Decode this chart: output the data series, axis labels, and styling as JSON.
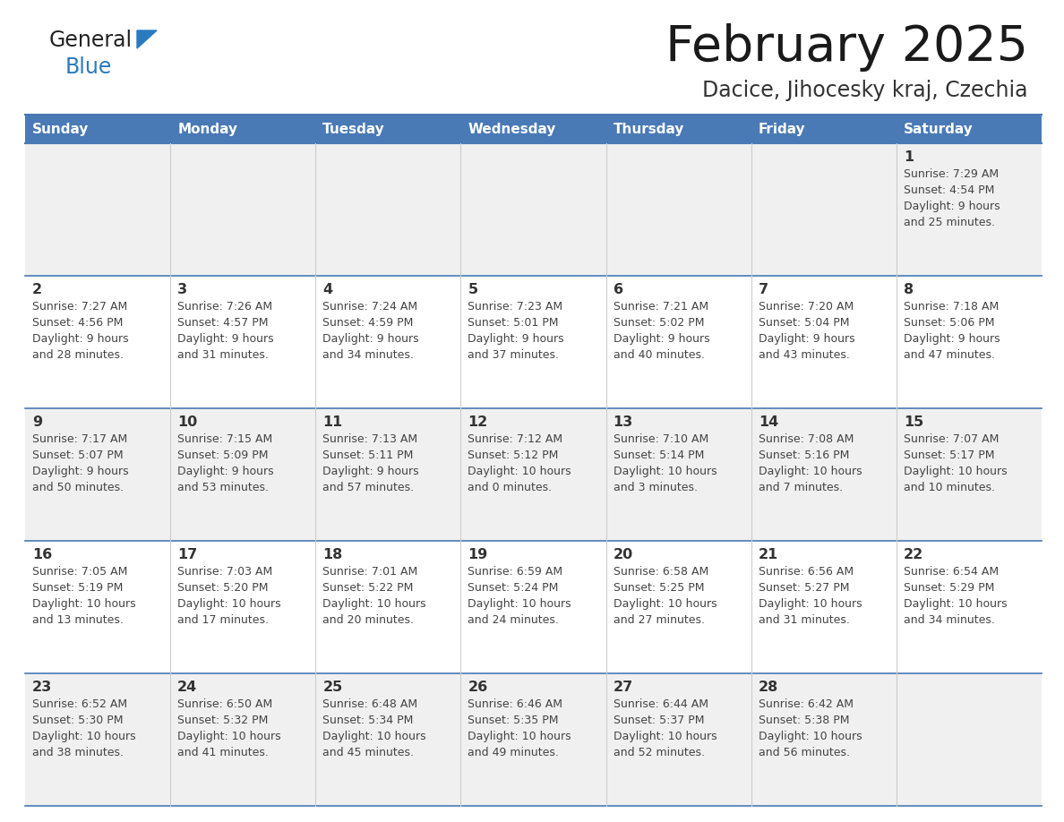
{
  "title": "February 2025",
  "subtitle": "Dacice, Jihocesky kraj, Czechia",
  "days_of_week": [
    "Sunday",
    "Monday",
    "Tuesday",
    "Wednesday",
    "Thursday",
    "Friday",
    "Saturday"
  ],
  "header_bg": "#4a7ab5",
  "header_text": "#ffffff",
  "row_bg_odd": "#f0f0f0",
  "row_bg_even": "#ffffff",
  "border_color": "#4a7ab5",
  "cell_text_color": "#444444",
  "day_num_color": "#333333",
  "title_color": "#1a1a1a",
  "subtitle_color": "#333333",
  "calendar_data": [
    {
      "day": 1,
      "col": 6,
      "row": 0,
      "sunrise": "7:29 AM",
      "sunset": "4:54 PM",
      "daylight": "9 hours and 25 minutes."
    },
    {
      "day": 2,
      "col": 0,
      "row": 1,
      "sunrise": "7:27 AM",
      "sunset": "4:56 PM",
      "daylight": "9 hours and 28 minutes."
    },
    {
      "day": 3,
      "col": 1,
      "row": 1,
      "sunrise": "7:26 AM",
      "sunset": "4:57 PM",
      "daylight": "9 hours and 31 minutes."
    },
    {
      "day": 4,
      "col": 2,
      "row": 1,
      "sunrise": "7:24 AM",
      "sunset": "4:59 PM",
      "daylight": "9 hours and 34 minutes."
    },
    {
      "day": 5,
      "col": 3,
      "row": 1,
      "sunrise": "7:23 AM",
      "sunset": "5:01 PM",
      "daylight": "9 hours and 37 minutes."
    },
    {
      "day": 6,
      "col": 4,
      "row": 1,
      "sunrise": "7:21 AM",
      "sunset": "5:02 PM",
      "daylight": "9 hours and 40 minutes."
    },
    {
      "day": 7,
      "col": 5,
      "row": 1,
      "sunrise": "7:20 AM",
      "sunset": "5:04 PM",
      "daylight": "9 hours and 43 minutes."
    },
    {
      "day": 8,
      "col": 6,
      "row": 1,
      "sunrise": "7:18 AM",
      "sunset": "5:06 PM",
      "daylight": "9 hours and 47 minutes."
    },
    {
      "day": 9,
      "col": 0,
      "row": 2,
      "sunrise": "7:17 AM",
      "sunset": "5:07 PM",
      "daylight": "9 hours and 50 minutes."
    },
    {
      "day": 10,
      "col": 1,
      "row": 2,
      "sunrise": "7:15 AM",
      "sunset": "5:09 PM",
      "daylight": "9 hours and 53 minutes."
    },
    {
      "day": 11,
      "col": 2,
      "row": 2,
      "sunrise": "7:13 AM",
      "sunset": "5:11 PM",
      "daylight": "9 hours and 57 minutes."
    },
    {
      "day": 12,
      "col": 3,
      "row": 2,
      "sunrise": "7:12 AM",
      "sunset": "5:12 PM",
      "daylight": "10 hours and 0 minutes."
    },
    {
      "day": 13,
      "col": 4,
      "row": 2,
      "sunrise": "7:10 AM",
      "sunset": "5:14 PM",
      "daylight": "10 hours and 3 minutes."
    },
    {
      "day": 14,
      "col": 5,
      "row": 2,
      "sunrise": "7:08 AM",
      "sunset": "5:16 PM",
      "daylight": "10 hours and 7 minutes."
    },
    {
      "day": 15,
      "col": 6,
      "row": 2,
      "sunrise": "7:07 AM",
      "sunset": "5:17 PM",
      "daylight": "10 hours and 10 minutes."
    },
    {
      "day": 16,
      "col": 0,
      "row": 3,
      "sunrise": "7:05 AM",
      "sunset": "5:19 PM",
      "daylight": "10 hours and 13 minutes."
    },
    {
      "day": 17,
      "col": 1,
      "row": 3,
      "sunrise": "7:03 AM",
      "sunset": "5:20 PM",
      "daylight": "10 hours and 17 minutes."
    },
    {
      "day": 18,
      "col": 2,
      "row": 3,
      "sunrise": "7:01 AM",
      "sunset": "5:22 PM",
      "daylight": "10 hours and 20 minutes."
    },
    {
      "day": 19,
      "col": 3,
      "row": 3,
      "sunrise": "6:59 AM",
      "sunset": "5:24 PM",
      "daylight": "10 hours and 24 minutes."
    },
    {
      "day": 20,
      "col": 4,
      "row": 3,
      "sunrise": "6:58 AM",
      "sunset": "5:25 PM",
      "daylight": "10 hours and 27 minutes."
    },
    {
      "day": 21,
      "col": 5,
      "row": 3,
      "sunrise": "6:56 AM",
      "sunset": "5:27 PM",
      "daylight": "10 hours and 31 minutes."
    },
    {
      "day": 22,
      "col": 6,
      "row": 3,
      "sunrise": "6:54 AM",
      "sunset": "5:29 PM",
      "daylight": "10 hours and 34 minutes."
    },
    {
      "day": 23,
      "col": 0,
      "row": 4,
      "sunrise": "6:52 AM",
      "sunset": "5:30 PM",
      "daylight": "10 hours and 38 minutes."
    },
    {
      "day": 24,
      "col": 1,
      "row": 4,
      "sunrise": "6:50 AM",
      "sunset": "5:32 PM",
      "daylight": "10 hours and 41 minutes."
    },
    {
      "day": 25,
      "col": 2,
      "row": 4,
      "sunrise": "6:48 AM",
      "sunset": "5:34 PM",
      "daylight": "10 hours and 45 minutes."
    },
    {
      "day": 26,
      "col": 3,
      "row": 4,
      "sunrise": "6:46 AM",
      "sunset": "5:35 PM",
      "daylight": "10 hours and 49 minutes."
    },
    {
      "day": 27,
      "col": 4,
      "row": 4,
      "sunrise": "6:44 AM",
      "sunset": "5:37 PM",
      "daylight": "10 hours and 52 minutes."
    },
    {
      "day": 28,
      "col": 5,
      "row": 4,
      "sunrise": "6:42 AM",
      "sunset": "5:38 PM",
      "daylight": "10 hours and 56 minutes."
    }
  ],
  "num_rows": 5,
  "num_cols": 7,
  "logo_general_color": "#222222",
  "logo_blue_color": "#2a7abf",
  "logo_triangle_color": "#2a7abf"
}
